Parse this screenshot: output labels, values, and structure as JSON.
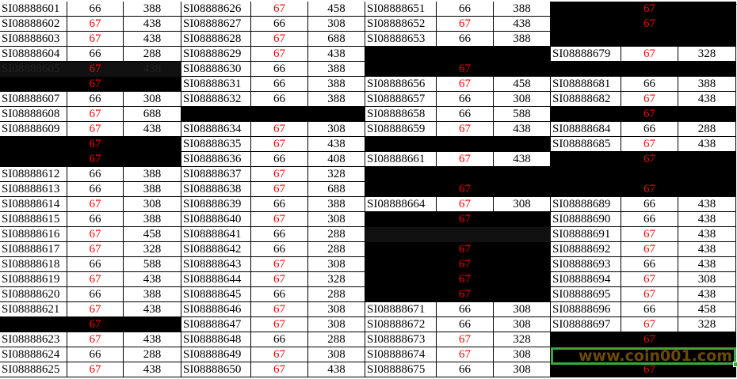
{
  "colors": {
    "accent_red": "#ff0000",
    "selection_green": "#3fa43f",
    "watermark": "#6b4a06"
  },
  "watermark_text": "www.coin001.com",
  "groups": [
    {
      "widths": [
        85,
        71,
        73
      ],
      "rows": [
        [
          "SI08888601",
          "66",
          "388",
          ""
        ],
        [
          "SI08888602",
          "67",
          "438",
          ""
        ],
        [
          "SI08888603",
          "67",
          "438",
          ""
        ],
        [
          "SI08888604",
          "66",
          "288",
          ""
        ],
        [
          "SI08888605",
          "67",
          "438",
          "dim"
        ],
        [
          "",
          "67",
          "",
          "black"
        ],
        [
          "SI08888607",
          "66",
          "308",
          ""
        ],
        [
          "SI08888608",
          "67",
          "688",
          ""
        ],
        [
          "SI08888609",
          "67",
          "438",
          ""
        ],
        [
          "",
          "67",
          "",
          "black"
        ],
        [
          "",
          "67",
          "",
          "black"
        ],
        [
          "SI08888612",
          "66",
          "388",
          ""
        ],
        [
          "SI08888613",
          "66",
          "388",
          ""
        ],
        [
          "SI08888614",
          "67",
          "308",
          ""
        ],
        [
          "SI08888615",
          "66",
          "388",
          ""
        ],
        [
          "SI08888616",
          "67",
          "458",
          ""
        ],
        [
          "SI08888617",
          "67",
          "328",
          ""
        ],
        [
          "SI08888618",
          "66",
          "588",
          ""
        ],
        [
          "SI08888619",
          "67",
          "438",
          ""
        ],
        [
          "SI08888620",
          "66",
          "388",
          ""
        ],
        [
          "SI08888621",
          "67",
          "438",
          ""
        ],
        [
          "",
          "67",
          "",
          "black"
        ],
        [
          "SI08888623",
          "67",
          "438",
          ""
        ],
        [
          "SI08888624",
          "66",
          "288",
          ""
        ],
        [
          "SI08888625",
          "67",
          "438",
          ""
        ]
      ]
    },
    {
      "widths": [
        88,
        72,
        72
      ],
      "rows": [
        [
          "SI08888626",
          "67",
          "458",
          ""
        ],
        [
          "SI08888627",
          "66",
          "308",
          ""
        ],
        [
          "SI08888628",
          "67",
          "688",
          ""
        ],
        [
          "SI08888629",
          "67",
          "438",
          ""
        ],
        [
          "SI08888630",
          "66",
          "388",
          ""
        ],
        [
          "SI08888631",
          "66",
          "388",
          ""
        ],
        [
          "SI08888632",
          "66",
          "388",
          ""
        ],
        [
          "",
          "",
          "",
          "black"
        ],
        [
          "SI08888634",
          "67",
          "308",
          ""
        ],
        [
          "SI08888635",
          "67",
          "438",
          ""
        ],
        [
          "SI08888636",
          "66",
          "408",
          ""
        ],
        [
          "SI08888637",
          "67",
          "328",
          ""
        ],
        [
          "SI08888638",
          "67",
          "688",
          ""
        ],
        [
          "SI08888639",
          "66",
          "388",
          ""
        ],
        [
          "SI08888640",
          "67",
          "308",
          ""
        ],
        [
          "SI08888641",
          "66",
          "288",
          ""
        ],
        [
          "SI08888642",
          "66",
          "288",
          ""
        ],
        [
          "SI08888643",
          "67",
          "308",
          ""
        ],
        [
          "SI08888644",
          "67",
          "328",
          ""
        ],
        [
          "SI08888645",
          "66",
          "288",
          ""
        ],
        [
          "SI08888646",
          "67",
          "308",
          ""
        ],
        [
          "SI08888647",
          "67",
          "308",
          ""
        ],
        [
          "SI08888648",
          "66",
          "288",
          ""
        ],
        [
          "SI08888649",
          "67",
          "308",
          ""
        ],
        [
          "SI08888650",
          "67",
          "438",
          ""
        ]
      ]
    },
    {
      "widths": [
        90,
        72,
        72
      ],
      "rows": [
        [
          "SI08888651",
          "66",
          "388",
          ""
        ],
        [
          "SI08888652",
          "67",
          "438",
          ""
        ],
        [
          "SI08888653",
          "66",
          "388",
          ""
        ],
        [
          "",
          "",
          "",
          "black"
        ],
        [
          "",
          "67",
          "",
          "black"
        ],
        [
          "SI08888656",
          "67",
          "458",
          ""
        ],
        [
          "SI08888657",
          "66",
          "308",
          ""
        ],
        [
          "SI08888658",
          "66",
          "588",
          ""
        ],
        [
          "SI08888659",
          "67",
          "438",
          ""
        ],
        [
          "",
          "",
          "",
          "black"
        ],
        [
          "SI08888661",
          "67",
          "438",
          ""
        ],
        [
          "",
          "",
          "",
          "black"
        ],
        [
          "",
          "67",
          "",
          "black"
        ],
        [
          "SI08888664",
          "67",
          "308",
          ""
        ],
        [
          "",
          "67",
          "",
          "black"
        ],
        [
          "",
          "",
          "",
          "dim"
        ],
        [
          "",
          "67",
          "",
          "black"
        ],
        [
          "",
          "67",
          "",
          "black"
        ],
        [
          "",
          "67",
          "",
          "black"
        ],
        [
          "",
          "67",
          "",
          "black"
        ],
        [
          "SI08888671",
          "66",
          "308",
          ""
        ],
        [
          "SI08888672",
          "66",
          "308",
          ""
        ],
        [
          "SI08888673",
          "67",
          "328",
          ""
        ],
        [
          "SI08888674",
          "67",
          "308",
          ""
        ],
        [
          "SI08888675",
          "66",
          "308",
          ""
        ]
      ]
    },
    {
      "widths": [
        89,
        72,
        73
      ],
      "rows": [
        [
          "",
          "67",
          "",
          "black"
        ],
        [
          "",
          "67",
          "",
          "black"
        ],
        [
          "",
          "",
          "",
          "black"
        ],
        [
          "SI08888679",
          "67",
          "328",
          ""
        ],
        [
          "",
          "",
          "",
          "black"
        ],
        [
          "SI08888681",
          "66",
          "388",
          ""
        ],
        [
          "SI08888682",
          "67",
          "438",
          ""
        ],
        [
          "",
          "67",
          "",
          "black"
        ],
        [
          "SI08888684",
          "66",
          "288",
          ""
        ],
        [
          "SI08888685",
          "67",
          "438",
          ""
        ],
        [
          "",
          "67",
          "",
          "black"
        ],
        [
          "",
          "",
          "",
          "black"
        ],
        [
          "",
          "67",
          "",
          "black"
        ],
        [
          "SI08888689",
          "66",
          "438",
          ""
        ],
        [
          "SI08888690",
          "66",
          "438",
          ""
        ],
        [
          "SI08888691",
          "67",
          "438",
          ""
        ],
        [
          "SI08888692",
          "67",
          "438",
          ""
        ],
        [
          "SI08888693",
          "66",
          "438",
          ""
        ],
        [
          "SI08888694",
          "67",
          "308",
          ""
        ],
        [
          "SI08888695",
          "67",
          "438",
          ""
        ],
        [
          "SI08888696",
          "66",
          "458",
          ""
        ],
        [
          "SI08888697",
          "67",
          "328",
          ""
        ],
        [
          "",
          "67",
          "",
          "black"
        ],
        [
          "",
          "",
          "",
          "black"
        ],
        [
          "",
          "67",
          "",
          "black"
        ]
      ]
    }
  ]
}
